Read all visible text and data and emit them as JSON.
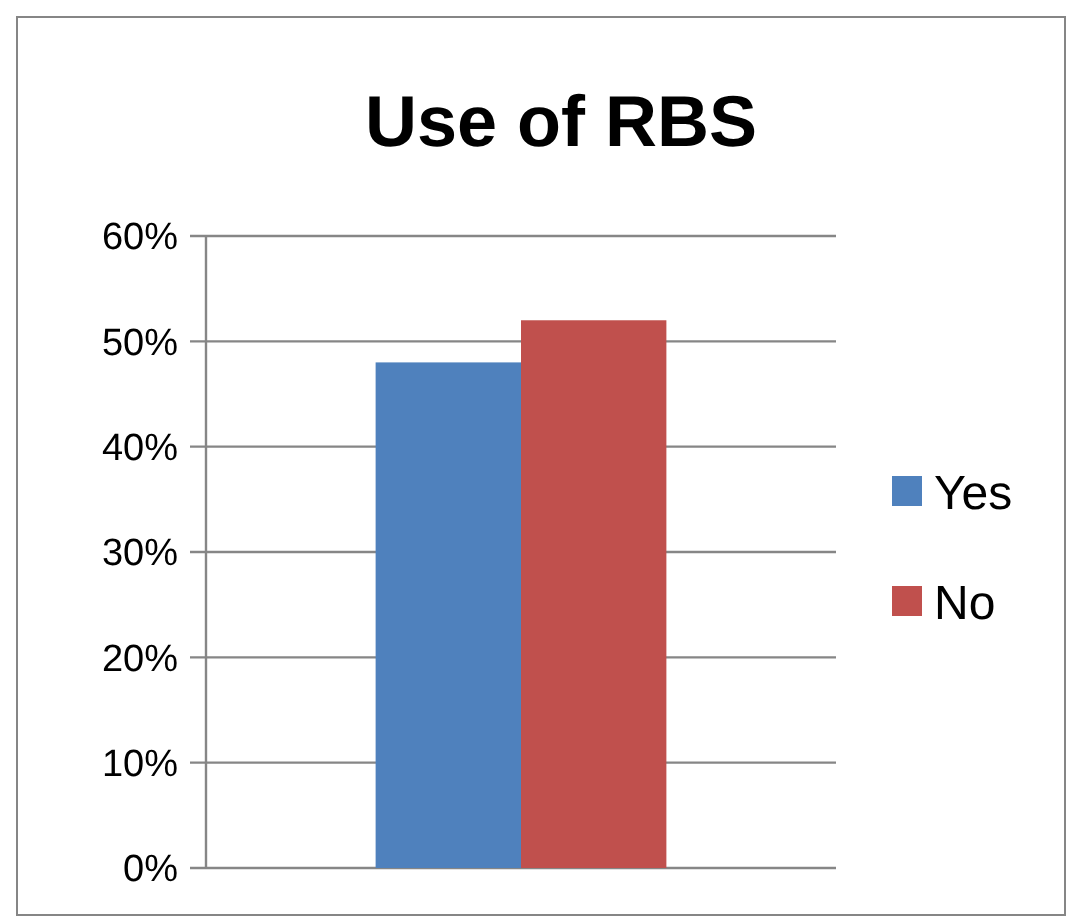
{
  "chart_data": {
    "type": "bar",
    "title": "Use of RBS",
    "categories": [
      null
    ],
    "series": [
      {
        "name": "Yes",
        "color": "#4f81bd",
        "values": [
          48
        ]
      },
      {
        "name": "No",
        "color": "#c0504d",
        "values": [
          52
        ]
      }
    ],
    "ylim": [
      0,
      60
    ],
    "yticks": [
      {
        "value": 0,
        "label": "0%"
      },
      {
        "value": 10,
        "label": "10%"
      },
      {
        "value": 20,
        "label": "20%"
      },
      {
        "value": 30,
        "label": "30%"
      },
      {
        "value": 40,
        "label": "40%"
      },
      {
        "value": 50,
        "label": "50%"
      },
      {
        "value": 60,
        "label": "60%"
      }
    ],
    "grid": "y",
    "legend": "right"
  }
}
